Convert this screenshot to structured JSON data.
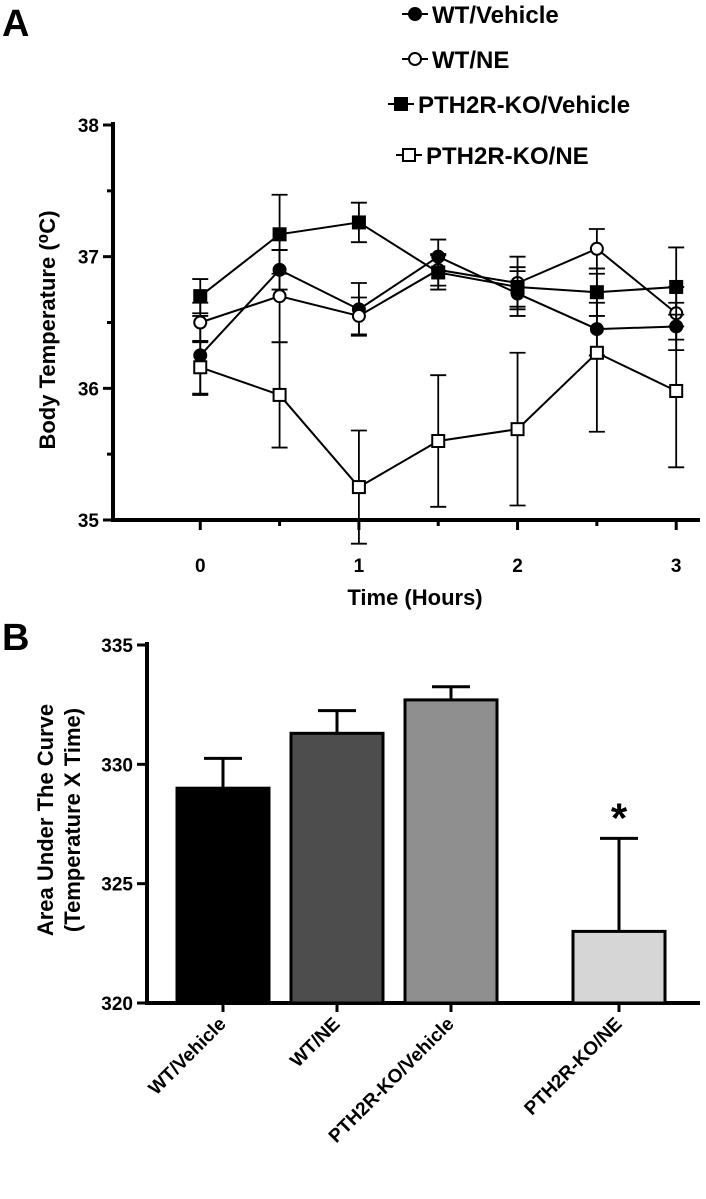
{
  "panels": {
    "a": {
      "letter": "A"
    },
    "b": {
      "letter": "B"
    }
  },
  "chart_data": [
    {
      "type": "line",
      "xlabel": "Time (Hours)",
      "ylabel": "Body Temperature (⁰C)",
      "xlim": [
        -0.55,
        3.15
      ],
      "ylim": [
        35,
        38
      ],
      "x_ticks": [
        "0",
        "1",
        "2",
        "3"
      ],
      "y_ticks": [
        "35",
        "36",
        "37",
        "38"
      ],
      "legend_position": "top-right",
      "x": [
        0,
        0.5,
        1,
        1.5,
        2,
        2.5,
        3
      ],
      "series": [
        {
          "name": "WT/Vehicle",
          "marker": "filled-circle",
          "values": [
            36.25,
            36.9,
            36.6,
            37.0,
            36.72,
            36.45,
            36.47
          ],
          "errors": [
            0.3,
            0.15,
            0.2,
            0.13,
            0.17,
            0.2,
            0.18
          ]
        },
        {
          "name": "WT/NE",
          "marker": "open-circle",
          "values": [
            36.5,
            36.7,
            36.55,
            36.9,
            36.8,
            37.06,
            36.57
          ],
          "errors": [
            0.15,
            0.35,
            0.14,
            0.12,
            0.2,
            0.15,
            0.2
          ]
        },
        {
          "name": "PTH2R-KO/Vehicle",
          "marker": "filled-square",
          "values": [
            36.7,
            37.17,
            37.26,
            36.88,
            36.77,
            36.73,
            36.77
          ],
          "errors": [
            0.13,
            0.3,
            0.15,
            0.13,
            0.15,
            0.18,
            0.3
          ]
        },
        {
          "name": "PTH2R-KO/NE",
          "marker": "open-square",
          "values": [
            36.16,
            35.95,
            35.25,
            35.6,
            35.69,
            36.27,
            35.98
          ],
          "errors": [
            0.2,
            0.4,
            0.43,
            0.5,
            0.58,
            0.6,
            0.58
          ]
        }
      ]
    },
    {
      "type": "bar",
      "ylabel_line1": "Area Under The Curve",
      "ylabel_line2": "(Temperature X Time)",
      "ylim": [
        320,
        335
      ],
      "y_ticks": [
        "320",
        "325",
        "330",
        "335"
      ],
      "categories": [
        "WT/Vehicle",
        "WT/NE",
        "PTH2R-KO/Vehicle",
        "PTH2R-KO/NE"
      ],
      "values": [
        329.0,
        331.3,
        332.7,
        323.0
      ],
      "errors": [
        1.25,
        0.95,
        0.55,
        3.9
      ],
      "colors": [
        "#000000",
        "#4d4d4d",
        "#8f8f8f",
        "#d6d6d6"
      ],
      "annotations": [
        {
          "category": "PTH2R-KO/NE",
          "text": "*"
        }
      ]
    }
  ]
}
